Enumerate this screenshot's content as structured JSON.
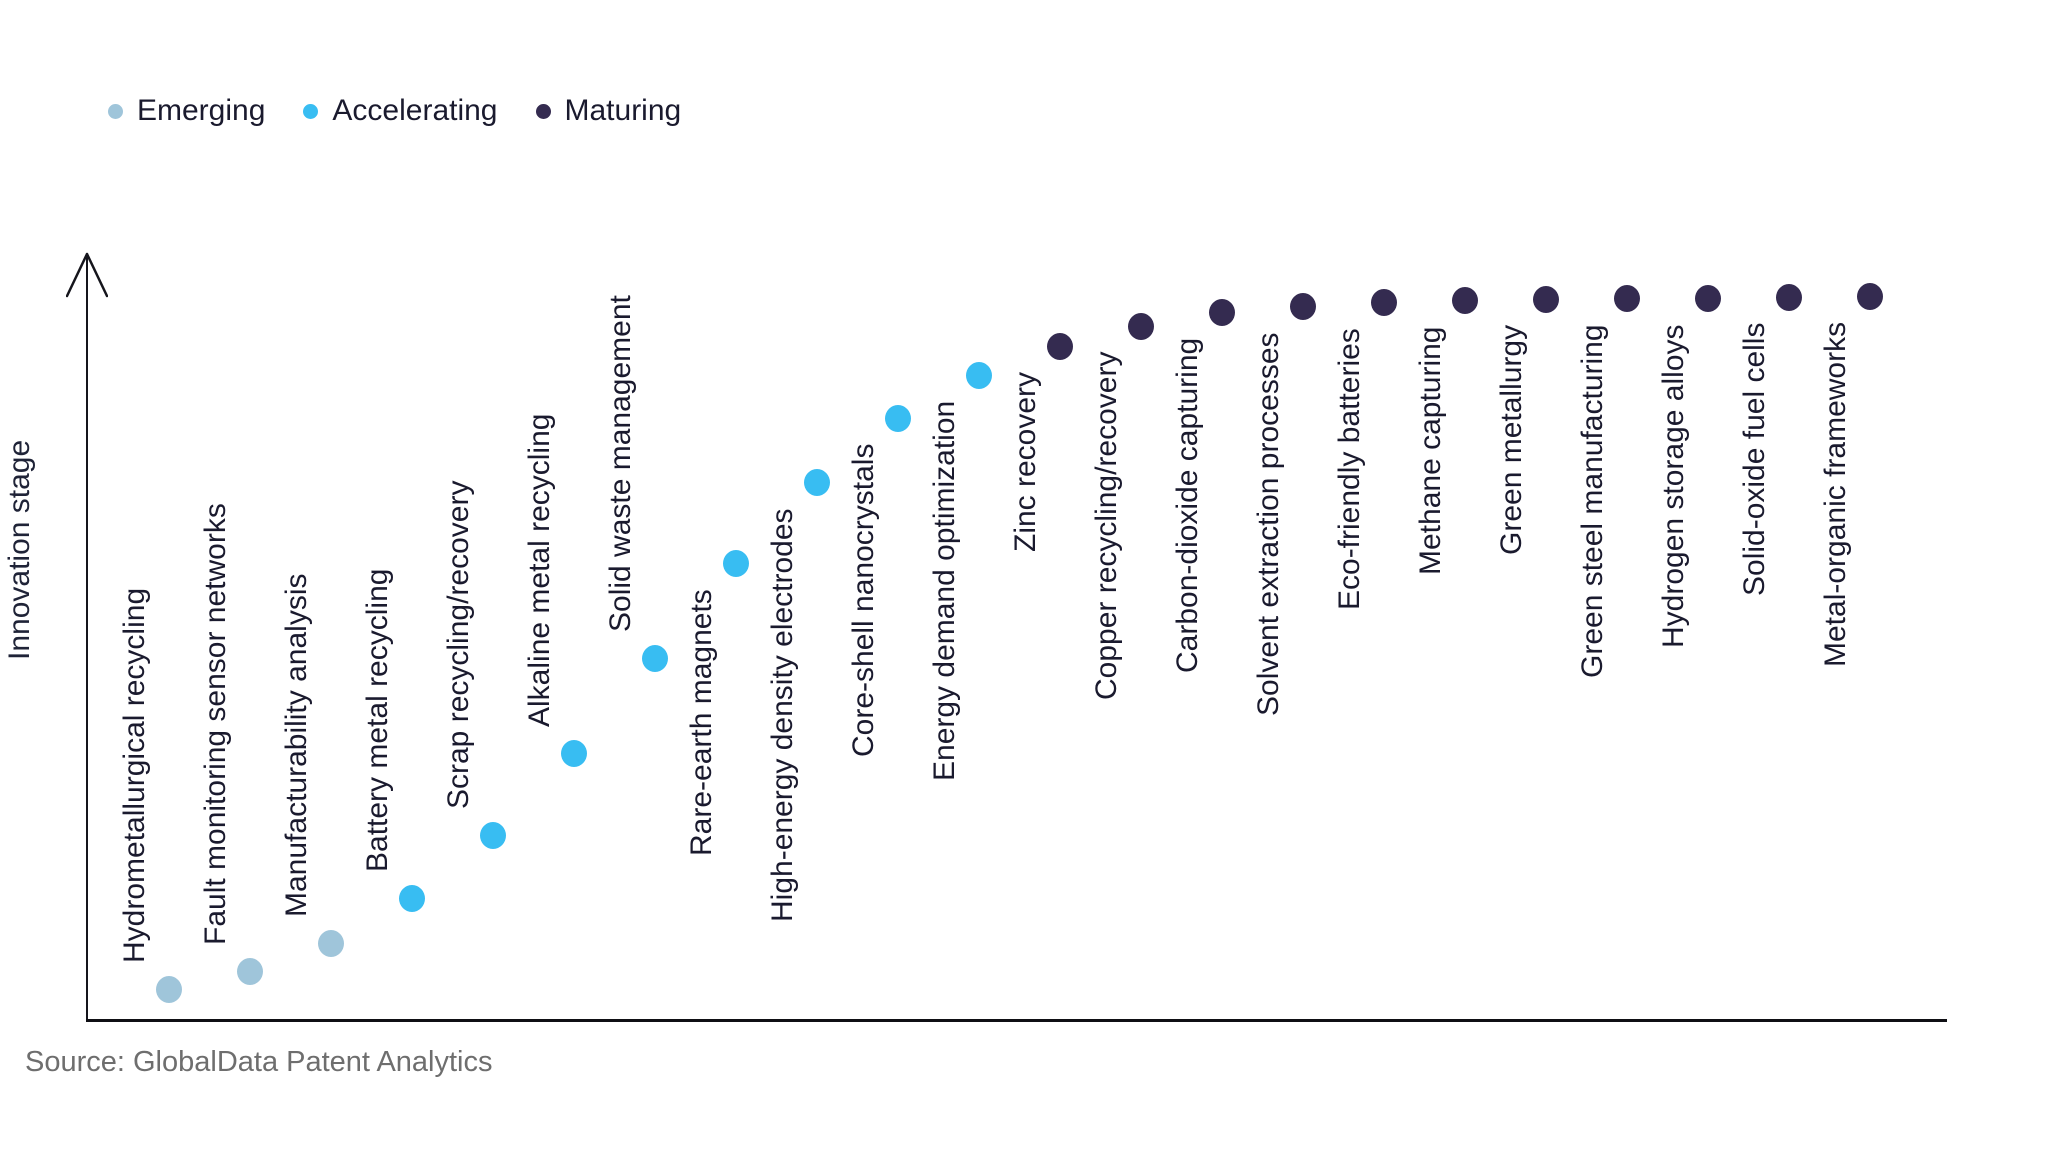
{
  "legend": {
    "items": [
      {
        "label": "Emerging",
        "key": "emerging"
      },
      {
        "label": "Accelerating",
        "key": "accelerating"
      },
      {
        "label": "Maturing",
        "key": "maturing"
      }
    ]
  },
  "colors": {
    "emerging": "#9fc5da",
    "accelerating": "#38bdf2",
    "maturing": "#342b50",
    "axis": "#15151c",
    "label_text": "#1a1a2e",
    "source_text": "#6e6e6e"
  },
  "y_axis_label": "Innovation stage",
  "source": "Source: GlobalData Patent Analytics",
  "chart_data": {
    "type": "scatter",
    "title": "",
    "xlabel": "",
    "ylabel": "Innovation stage",
    "ylim": [
      0,
      100
    ],
    "grid": false,
    "legend_position": "top-left",
    "x_tick_labels": "none (each point labeled with rotated technology name)",
    "points": [
      {
        "label": "Hydrometallurgical recycling",
        "stage": "Emerging",
        "value": 4.4
      },
      {
        "label": "Fault monitoring sensor networks",
        "stage": "Emerging",
        "value": 6.9
      },
      {
        "label": "Manufacturability analysis",
        "stage": "Emerging",
        "value": 10.8
      },
      {
        "label": "Battery metal recycling",
        "stage": "Accelerating",
        "value": 17.0
      },
      {
        "label": "Scrap recycling/recovery",
        "stage": "Accelerating",
        "value": 25.7
      },
      {
        "label": "Alkaline metal recycling",
        "stage": "Accelerating",
        "value": 37.0
      },
      {
        "label": "Solid waste management",
        "stage": "Accelerating",
        "value": 50.1
      },
      {
        "label": "Rare-earth magnets",
        "stage": "Accelerating",
        "value": 63.2
      },
      {
        "label": "High-energy density electrodes",
        "stage": "Accelerating",
        "value": 74.3
      },
      {
        "label": "Core-shell nanocrystals",
        "stage": "Accelerating",
        "value": 83.2
      },
      {
        "label": "Energy demand optimization",
        "stage": "Accelerating",
        "value": 89.1
      },
      {
        "label": "Zinc recovery",
        "stage": "Maturing",
        "value": 93.1
      },
      {
        "label": "Copper recycling/recovery",
        "stage": "Maturing",
        "value": 95.9
      },
      {
        "label": "Carbon-dioxide capturing",
        "stage": "Maturing",
        "value": 97.8
      },
      {
        "label": "Solvent extraction processes",
        "stage": "Maturing",
        "value": 98.6
      },
      {
        "label": "Eco-friendly batteries",
        "stage": "Maturing",
        "value": 99.2
      },
      {
        "label": "Methane capturing",
        "stage": "Maturing",
        "value": 99.4
      },
      {
        "label": "Green metallurgy",
        "stage": "Maturing",
        "value": 99.6
      },
      {
        "label": "Green steel manufacturing",
        "stage": "Maturing",
        "value": 99.7
      },
      {
        "label": "Hydrogen storage alloys",
        "stage": "Maturing",
        "value": 99.7
      },
      {
        "label": "Solid-oxide fuel cells",
        "stage": "Maturing",
        "value": 99.9
      },
      {
        "label": "Metal-organic frameworks",
        "stage": "Maturing",
        "value": 100.0
      }
    ]
  }
}
